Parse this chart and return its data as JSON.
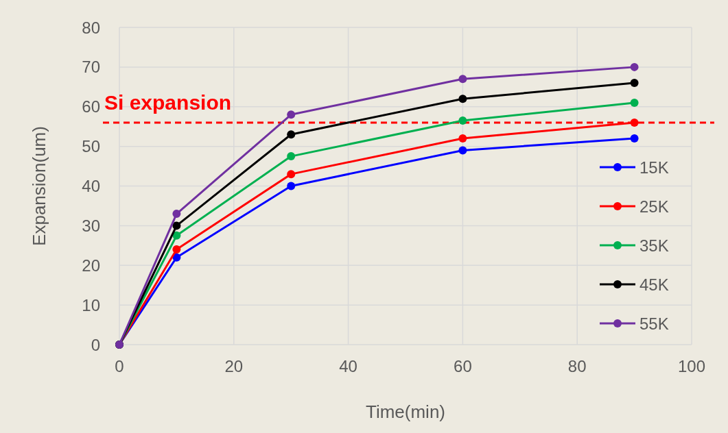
{
  "chart_data": {
    "type": "line",
    "xlabel": "Time(min)",
    "ylabel": "Expansion(um)",
    "x": [
      0,
      10,
      30,
      60,
      90
    ],
    "xlim": [
      0,
      100
    ],
    "xticks": [
      0,
      20,
      40,
      60,
      80,
      100
    ],
    "ylim": [
      0,
      80
    ],
    "yticks": [
      0,
      10,
      20,
      30,
      40,
      50,
      60,
      70,
      80
    ],
    "grid": true,
    "legend": "right",
    "marker": "circle",
    "line_style": "solid",
    "ref_lines": [
      {
        "axis": "y",
        "value": 56,
        "label": "Si expansion",
        "color": "#ff0000",
        "line_style": "dashed"
      }
    ],
    "series": [
      {
        "name": "15K",
        "color": "#0000ff",
        "values": [
          0,
          22,
          40,
          49,
          52
        ]
      },
      {
        "name": "25K",
        "color": "#ff0000",
        "values": [
          0,
          24,
          43,
          52,
          56
        ]
      },
      {
        "name": "35K",
        "color": "#00b050",
        "values": [
          0,
          27.5,
          47.5,
          56.5,
          61
        ]
      },
      {
        "name": "45K",
        "color": "#000000",
        "values": [
          0,
          30,
          53,
          62,
          66
        ]
      },
      {
        "name": "55K",
        "color": "#7030a0",
        "values": [
          0,
          33,
          58,
          67,
          70
        ]
      }
    ]
  }
}
